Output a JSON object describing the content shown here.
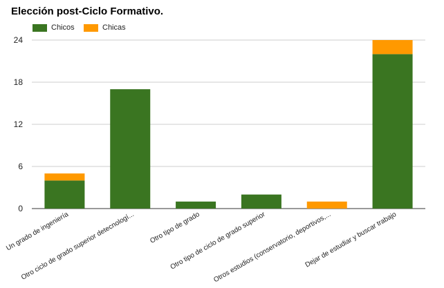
{
  "chart_data": {
    "type": "bar",
    "stacked": true,
    "title": "Elección post-Ciclo Formativo.",
    "categories": [
      "Un grado de ingeniería",
      "Otro ciclo de grado superior detecnologí...",
      "Otro tipo de grado",
      "Otro tipo de ciclo de grado superior",
      "Otros estudios (conservatorio, deportivos,...",
      "Dejar de estudiar y buscar trabajo"
    ],
    "series": [
      {
        "name": "Chicos",
        "color": "#3a7521",
        "values": [
          4,
          17,
          1,
          2,
          0,
          22
        ]
      },
      {
        "name": "Chicas",
        "color": "#ff9900",
        "values": [
          1,
          0,
          0,
          0,
          1,
          2
        ]
      }
    ],
    "yticks": [
      0,
      6,
      12,
      18,
      24
    ],
    "ylim": [
      0,
      24
    ],
    "grid": true,
    "legend_position": "top-left"
  }
}
